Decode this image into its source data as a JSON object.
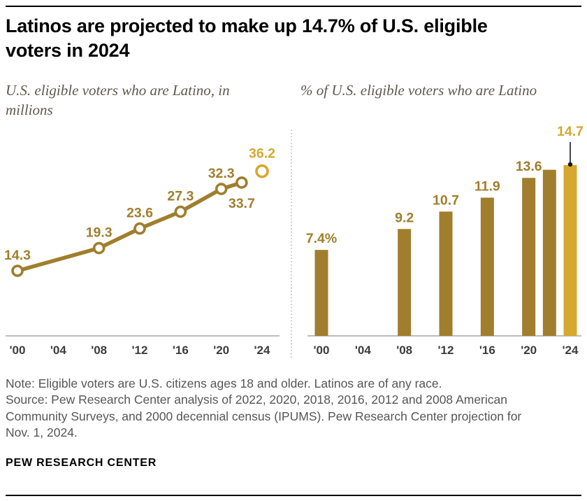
{
  "header": {
    "title": "Latinos are projected to make up 14.7% of U.S. eligible voters in 2024"
  },
  "colors": {
    "dark_gold": "#a07e2d",
    "light_gold": "#d7a82f",
    "axis": "#a6a6a6",
    "tick_text": "#3d3d3d",
    "note_text": "#565658",
    "pointer_black": "#1a1a1a"
  },
  "chart_data": [
    {
      "type": "line",
      "title": "U.S. eligible voters who are Latino, in millions",
      "x": [
        2000,
        2008,
        2012,
        2016,
        2020,
        2022,
        2024
      ],
      "values": [
        14.3,
        19.3,
        23.6,
        27.3,
        32.3,
        33.7,
        36.2
      ],
      "point_labels": [
        "14.3",
        "19.3",
        "23.6",
        "27.3",
        "32.3",
        "33.7",
        "36.2"
      ],
      "projected_last_point": true,
      "xticks": {
        "years": [
          2000,
          2004,
          2008,
          2012,
          2016,
          2020,
          2024
        ],
        "labels": [
          "'00",
          "'04",
          "'08",
          "'12",
          "'16",
          "'20",
          "'24"
        ]
      },
      "ylim": [
        0,
        40
      ],
      "grid": false,
      "legend": "none",
      "unit": "millions"
    },
    {
      "type": "bar",
      "title": "% of U.S. eligible voters who are Latino",
      "x": [
        2000,
        2008,
        2012,
        2016,
        2020,
        2022,
        2024
      ],
      "values": [
        7.4,
        9.2,
        10.7,
        11.9,
        13.6,
        14.3,
        14.7
      ],
      "bar_labels": [
        "7.4%",
        "9.2",
        "10.7",
        "11.9",
        "13.6",
        "",
        "14.7"
      ],
      "highlight_last_bar": true,
      "xticks": {
        "years": [
          2000,
          2004,
          2008,
          2012,
          2016,
          2020,
          2024
        ],
        "labels": [
          "'00",
          "'04",
          "'08",
          "'12",
          "'16",
          "'20",
          "'24"
        ]
      },
      "ylim": [
        0,
        16
      ],
      "grid": false,
      "legend": "none",
      "unit": "percent"
    }
  ],
  "footer": {
    "note": "Note: Eligible voters are U.S. citizens ages 18 and older. Latinos are of any race.",
    "source": "Source: Pew Research Center analysis of 2022, 2020, 2018, 2016, 2012 and 2008 American Community Surveys, and 2000 decennial census (IPUMS). Pew Research Center projection for Nov. 1, 2024.",
    "brand": "PEW RESEARCH CENTER"
  }
}
